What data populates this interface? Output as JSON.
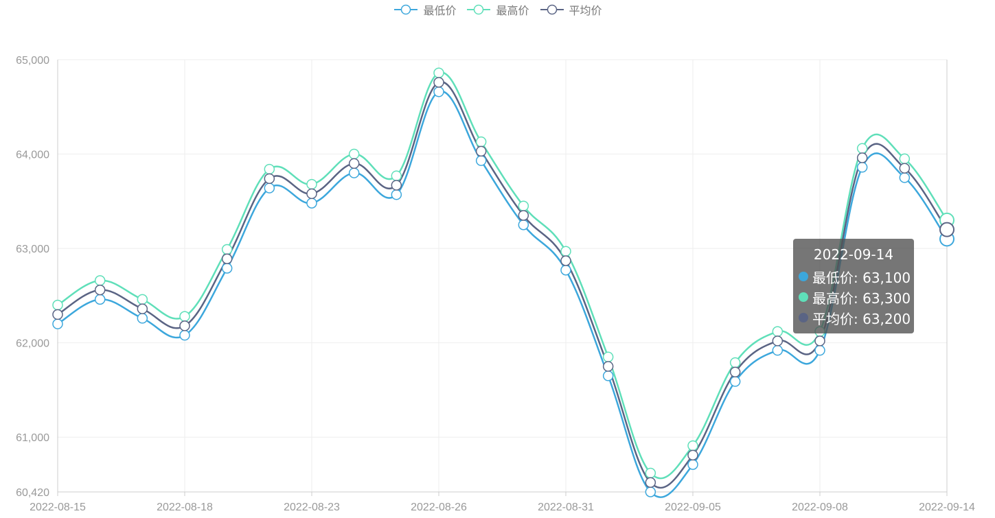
{
  "legend": [
    {
      "name": "最低价",
      "color": "#3ca7dc"
    },
    {
      "name": "最高价",
      "color": "#5fdfb9"
    },
    {
      "name": "平均价",
      "color": "#5a6484"
    }
  ],
  "tooltip": {
    "title": "2022-09-14",
    "rows": [
      {
        "label": "最低价: 63,100",
        "color": "#3ca7dc"
      },
      {
        "label": "最高价: 63,300",
        "color": "#5fdfb9"
      },
      {
        "label": "平均价: 63,200",
        "color": "#5a6484"
      }
    ]
  },
  "chart_data": {
    "type": "line",
    "x": [
      "2022-08-15",
      "2022-08-16",
      "2022-08-17",
      "2022-08-18",
      "2022-08-19",
      "2022-08-22",
      "2022-08-23",
      "2022-08-24",
      "2022-08-25",
      "2022-08-26",
      "2022-08-29",
      "2022-08-30",
      "2022-08-31",
      "2022-09-01",
      "2022-09-02",
      "2022-09-05",
      "2022-09-06",
      "2022-09-07",
      "2022-09-08",
      "2022-09-09",
      "2022-09-13",
      "2022-09-14"
    ],
    "x_tick_labels": [
      "2022-08-15",
      "2022-08-18",
      "2022-08-23",
      "2022-08-26",
      "2022-08-31",
      "2022-09-05",
      "2022-09-08",
      "2022-09-14"
    ],
    "x_tick_indices": [
      0,
      3,
      6,
      9,
      12,
      15,
      18,
      21
    ],
    "y_tick_labels": [
      "60,420",
      "61,000",
      "62,000",
      "63,000",
      "64,000",
      "65,000"
    ],
    "y_tick_values": [
      60420,
      61000,
      62000,
      63000,
      64000,
      65000
    ],
    "ylim": [
      60420,
      65000
    ],
    "grid": true,
    "legend_position": "top-center",
    "highlight_index": 21,
    "series": [
      {
        "name": "最低价",
        "color": "#3ca7dc",
        "values": [
          62200,
          62460,
          62260,
          62080,
          62790,
          63640,
          63480,
          63800,
          63570,
          64660,
          63930,
          63250,
          62770,
          61650,
          60420,
          60710,
          61590,
          61920,
          61920,
          63860,
          63750,
          63100
        ]
      },
      {
        "name": "最高价",
        "color": "#5fdfb9",
        "values": [
          62400,
          62660,
          62460,
          62280,
          62990,
          63840,
          63680,
          64000,
          63770,
          64860,
          64130,
          63450,
          62970,
          61850,
          60620,
          60910,
          61790,
          62120,
          62120,
          64060,
          63950,
          63300
        ]
      },
      {
        "name": "平均价",
        "color": "#5a6484",
        "values": [
          62300,
          62560,
          62360,
          62180,
          62890,
          63740,
          63580,
          63900,
          63670,
          64760,
          64030,
          63350,
          62870,
          61750,
          60520,
          60810,
          61690,
          62020,
          62020,
          63960,
          63850,
          63200
        ]
      }
    ]
  }
}
